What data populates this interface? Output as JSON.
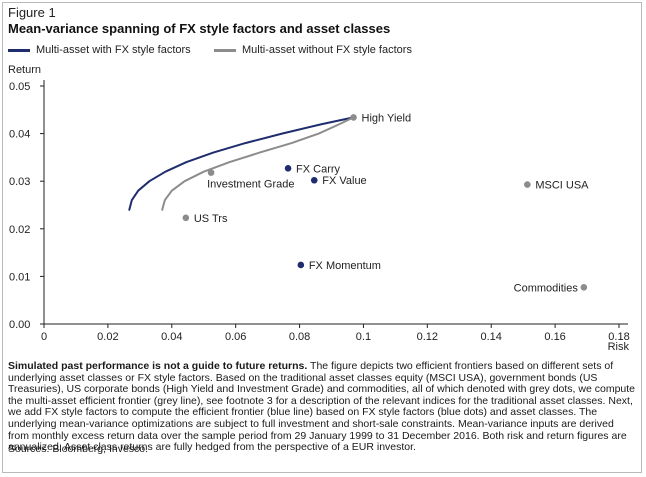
{
  "figure_label": "Figure 1",
  "title": "Mean-variance spanning of FX style factors and asset classes",
  "legend": [
    {
      "label": "Multi-asset with FX style factors",
      "color": "#1f2d6e"
    },
    {
      "label": "Multi-asset without FX style factors",
      "color": "#8c8c8c"
    }
  ],
  "chart_data": {
    "type": "scatter",
    "xlabel": "Risk",
    "ylabel": "Return",
    "xlim": [
      0,
      0.18
    ],
    "ylim": [
      0,
      0.05
    ],
    "x_ticks": [
      "0",
      "0.02",
      "0.04",
      "0.06",
      "0.08",
      "0.1",
      "0.12",
      "0.14",
      "0.16",
      "0.18"
    ],
    "y_ticks": [
      "0.00",
      "0.01",
      "0.02",
      "0.03",
      "0.04",
      "0.05"
    ],
    "grid": false,
    "series": [
      {
        "name": "Multi-asset with FX style factors",
        "kind": "line",
        "color": "#1f2d6e",
        "points": [
          [
            0.0267,
            0.024
          ],
          [
            0.0275,
            0.026
          ],
          [
            0.0295,
            0.028
          ],
          [
            0.033,
            0.03
          ],
          [
            0.038,
            0.032
          ],
          [
            0.0445,
            0.034
          ],
          [
            0.053,
            0.036
          ],
          [
            0.063,
            0.038
          ],
          [
            0.0745,
            0.04
          ],
          [
            0.087,
            0.042
          ],
          [
            0.0969,
            0.0434
          ],
          [
            0.0969,
            0.0434
          ]
        ]
      },
      {
        "name": "Multi-asset without FX style factors",
        "kind": "line",
        "color": "#8c8c8c",
        "points": [
          [
            0.037,
            0.024
          ],
          [
            0.0378,
            0.026
          ],
          [
            0.04,
            0.028
          ],
          [
            0.044,
            0.03
          ],
          [
            0.05,
            0.032
          ],
          [
            0.058,
            0.034
          ],
          [
            0.0675,
            0.036
          ],
          [
            0.0775,
            0.038
          ],
          [
            0.086,
            0.04
          ],
          [
            0.0925,
            0.042
          ],
          [
            0.0969,
            0.0434
          ]
        ]
      }
    ],
    "points": [
      {
        "label": "High Yield",
        "x": 0.0969,
        "y": 0.0434,
        "color": "#8c8c8c",
        "label_pos": "right"
      },
      {
        "label": "Investment Grade",
        "x": 0.0523,
        "y": 0.0318,
        "color": "#8c8c8c",
        "label_pos": "below"
      },
      {
        "label": "US Trs",
        "x": 0.0444,
        "y": 0.0223,
        "color": "#8c8c8c",
        "label_pos": "right"
      },
      {
        "label": "MSCI USA",
        "x": 0.1513,
        "y": 0.0293,
        "color": "#8c8c8c",
        "label_pos": "right"
      },
      {
        "label": "Commodities",
        "x": 0.169,
        "y": 0.0077,
        "color": "#8c8c8c",
        "label_pos": "left"
      },
      {
        "label": "FX Carry",
        "x": 0.0764,
        "y": 0.0327,
        "color": "#1f2d6e",
        "label_pos": "right"
      },
      {
        "label": "FX Value",
        "x": 0.0846,
        "y": 0.0302,
        "color": "#1f2d6e",
        "label_pos": "right"
      },
      {
        "label": "FX Momentum",
        "x": 0.0804,
        "y": 0.0124,
        "color": "#1f2d6e",
        "label_pos": "right"
      }
    ]
  },
  "footnote": {
    "bold": "Simulated past performance is not a guide to future returns.",
    "text": " The figure depicts two efficient frontiers based on different sets of underlying asset classes or FX style factors. Based on the traditional asset classes equity (MSCI USA), government bonds (US Treasuries), US corporate bonds (High Yield and Investment Grade) and commodities, all of which denoted with grey dots, we compute the multi-asset efficient frontier (grey line), see footnote 3 for a description of the relevant indices for the traditional asset classes. Next, we add FX style factors to compute the efficient frontier (blue line) based on FX style factors (blue dots) and asset classes. The underlying mean-variance optimizations are subject to full investment and short-sale constraints. Mean-variance inputs are derived from monthly excess return data over the sample period from 29 January 1999 to 31 December 2016. Both risk and return figures are annualized. Asset class returns are fully hedged from the perspective of a EUR investor."
  },
  "sources": "Sources: Bloomberg, Invesco."
}
